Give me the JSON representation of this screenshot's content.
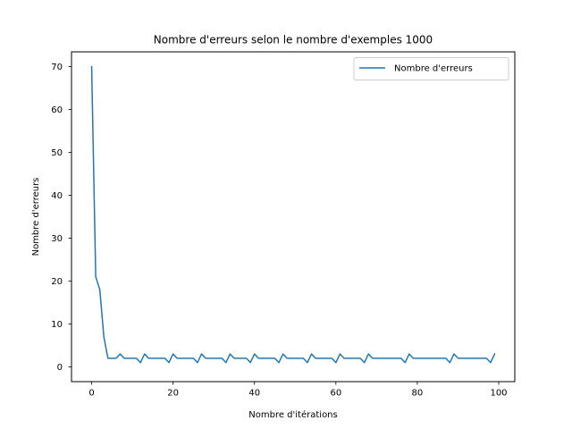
{
  "chart_data": {
    "type": "line",
    "title": "Nombre d'erreurs selon le nombre d'exemples 1000",
    "xlabel": "Nombre d'itérations",
    "ylabel": "Nombre d'erreurs",
    "xlim": [
      -4.95,
      103.95
    ],
    "ylim": [
      -3.45,
      73.45
    ],
    "xticks": [
      0,
      20,
      40,
      60,
      80,
      100
    ],
    "xtick_labels": [
      "0",
      "20",
      "40",
      "60",
      "80",
      "100"
    ],
    "yticks": [
      0,
      10,
      20,
      30,
      40,
      50,
      60,
      70
    ],
    "ytick_labels": [
      "0",
      "10",
      "20",
      "30",
      "40",
      "50",
      "60",
      "70"
    ],
    "legend_position": "upper right",
    "grid": false,
    "series": [
      {
        "name": "Nombre d'erreurs",
        "color": "#1f77b4",
        "x": [
          0,
          1,
          2,
          3,
          4,
          5,
          6,
          7,
          8,
          9,
          10,
          11,
          12,
          13,
          14,
          15,
          16,
          17,
          18,
          19,
          20,
          21,
          22,
          23,
          24,
          25,
          26,
          27,
          28,
          29,
          30,
          31,
          32,
          33,
          34,
          35,
          36,
          37,
          38,
          39,
          40,
          41,
          42,
          43,
          44,
          45,
          46,
          47,
          48,
          49,
          50,
          51,
          52,
          53,
          54,
          55,
          56,
          57,
          58,
          59,
          60,
          61,
          62,
          63,
          64,
          65,
          66,
          67,
          68,
          69,
          70,
          71,
          72,
          73,
          74,
          75,
          76,
          77,
          78,
          79,
          80,
          81,
          82,
          83,
          84,
          85,
          86,
          87,
          88,
          89,
          90,
          91,
          92,
          93,
          94,
          95,
          96,
          97,
          98,
          99
        ],
        "y": [
          70,
          21,
          18,
          7,
          2,
          2,
          2,
          3,
          2,
          2,
          2,
          2,
          1,
          3,
          2,
          2,
          2,
          2,
          2,
          1,
          3,
          2,
          2,
          2,
          2,
          2,
          1,
          3,
          2,
          2,
          2,
          2,
          2,
          1,
          3,
          2,
          2,
          2,
          2,
          1,
          3,
          2,
          2,
          2,
          2,
          2,
          1,
          3,
          2,
          2,
          2,
          2,
          2,
          1,
          3,
          2,
          2,
          2,
          2,
          2,
          1,
          3,
          2,
          2,
          2,
          2,
          2,
          1,
          3,
          2,
          2,
          2,
          2,
          2,
          2,
          2,
          2,
          1,
          3,
          2,
          2,
          2,
          2,
          2,
          2,
          2,
          2,
          2,
          1,
          3,
          2,
          2,
          2,
          2,
          2,
          2,
          2,
          2,
          1,
          3
        ]
      }
    ]
  }
}
